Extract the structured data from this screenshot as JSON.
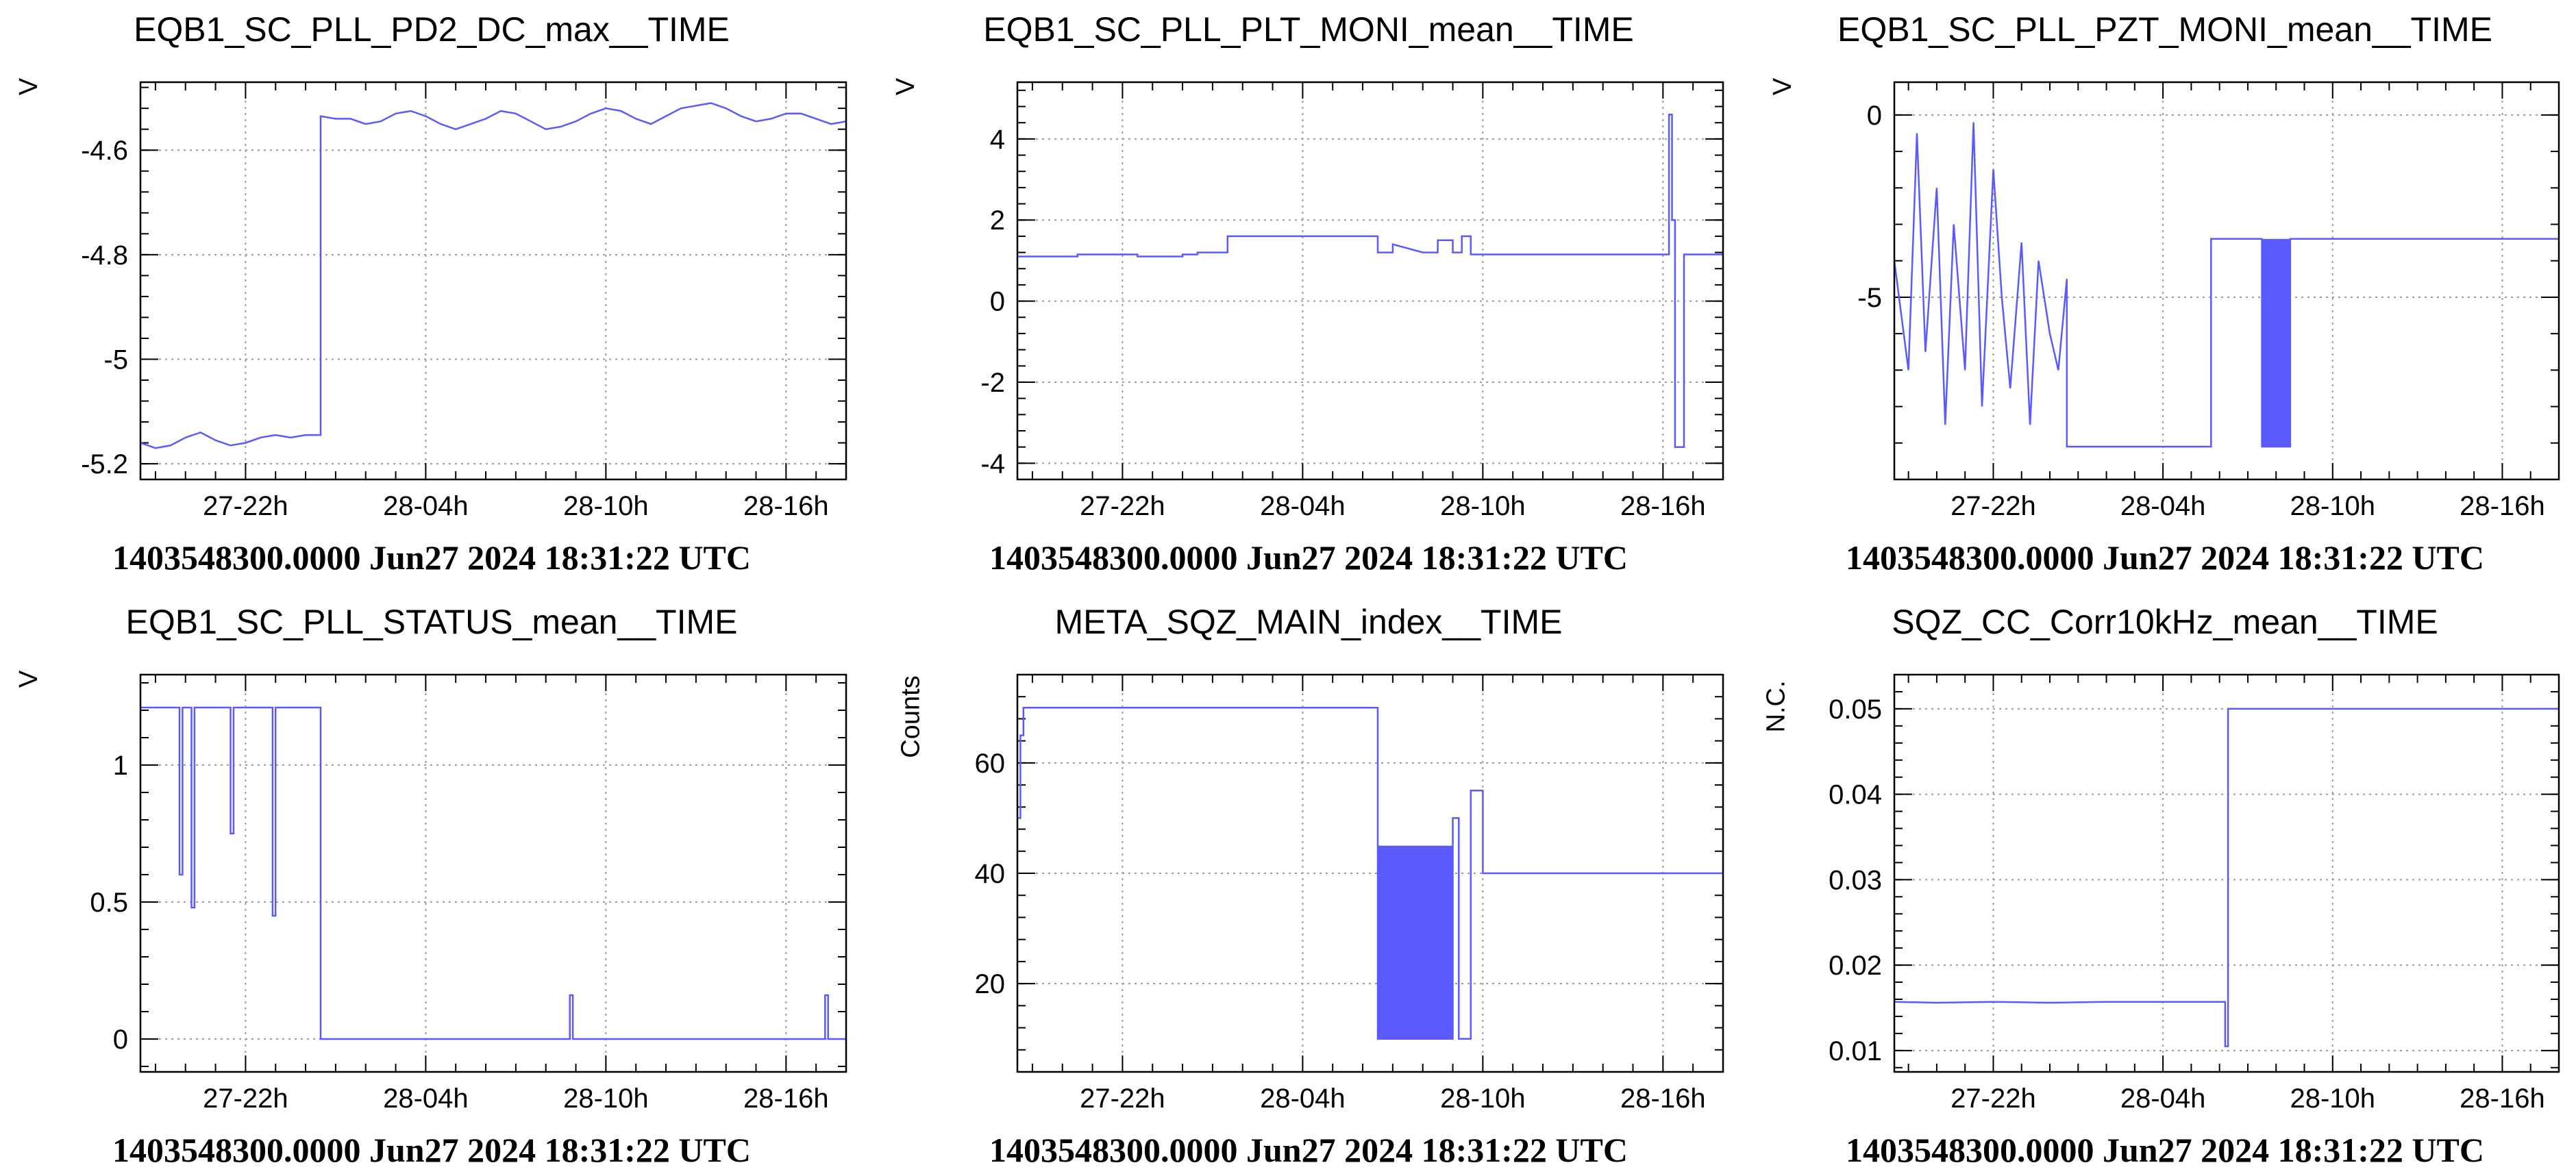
{
  "footer_text": "1403548300.0000 Jun27 2024 18:31:22 UTC",
  "xaxis_ticks": [
    "27-22h",
    "28-04h",
    "28-10h",
    "28-16h"
  ],
  "colors": {
    "series": "#5a5aff",
    "grid": "#9a9a9a",
    "frame": "#000000"
  },
  "chart_data": [
    {
      "type": "line",
      "title": "EQB1_SC_PLL_PD2_DC_max__TIME",
      "ylabel": "V",
      "ylim": [
        -5.23,
        -4.47
      ],
      "yticks": [
        {
          "v": -5.2,
          "label": "-5.2"
        },
        {
          "v": -5.0,
          "label": "-5"
        },
        {
          "v": -4.8,
          "label": "-4.8"
        },
        {
          "v": -4.6,
          "label": "-4.6"
        }
      ],
      "x_range_hours": [
        18.5,
        42.0
      ],
      "series": [
        {
          "x": [
            18.5,
            19.0,
            19.5,
            20.0,
            20.5,
            21.0,
            21.5,
            22.0,
            22.5,
            23.0,
            23.5,
            24.0,
            24.5,
            24.5,
            25.0,
            25.5,
            26.0,
            26.5,
            27.0,
            27.5,
            28.0,
            28.5,
            29.0,
            29.5,
            30.0,
            30.5,
            31.0,
            31.5,
            32.0,
            32.5,
            33.0,
            33.5,
            34.0,
            34.5,
            35.0,
            35.5,
            36.0,
            36.5,
            37.0,
            37.5,
            38.0,
            38.5,
            39.0,
            39.5,
            40.0,
            40.5,
            41.0,
            41.5,
            42.0
          ],
          "y": [
            -5.16,
            -5.17,
            -5.165,
            -5.15,
            -5.14,
            -5.155,
            -5.165,
            -5.16,
            -5.15,
            -5.145,
            -5.15,
            -5.145,
            -5.145,
            -4.535,
            -4.54,
            -4.54,
            -4.55,
            -4.545,
            -4.53,
            -4.525,
            -4.535,
            -4.55,
            -4.56,
            -4.55,
            -4.54,
            -4.525,
            -4.53,
            -4.545,
            -4.56,
            -4.555,
            -4.545,
            -4.53,
            -4.52,
            -4.525,
            -4.54,
            -4.55,
            -4.535,
            -4.52,
            -4.515,
            -4.51,
            -4.52,
            -4.535,
            -4.545,
            -4.54,
            -4.53,
            -4.53,
            -4.54,
            -4.55,
            -4.545
          ]
        }
      ]
    },
    {
      "type": "line",
      "title": "EQB1_SC_PLL_PLT_MONI_mean__TIME",
      "ylabel": "V",
      "ylim": [
        -4.4,
        5.4
      ],
      "yticks": [
        {
          "v": -4,
          "label": "-4"
        },
        {
          "v": -2,
          "label": "-2"
        },
        {
          "v": 0,
          "label": "0"
        },
        {
          "v": 2,
          "label": "2"
        },
        {
          "v": 4,
          "label": "4"
        }
      ],
      "x_range_hours": [
        18.5,
        42.0
      ],
      "series": [
        {
          "x": [
            18.5,
            20.5,
            20.5,
            22.5,
            22.5,
            24.0,
            24.0,
            24.5,
            24.5,
            25.5,
            25.5,
            30.5,
            30.5,
            31.0,
            31.0,
            32.0,
            32.5,
            32.5,
            33.0,
            33.0,
            33.3,
            33.3,
            33.6,
            33.6,
            40.0,
            40.2,
            40.2,
            40.3,
            40.3,
            40.4,
            40.4,
            40.5,
            40.5,
            40.7,
            40.7,
            40.85,
            40.85,
            42.0
          ],
          "y": [
            1.1,
            1.1,
            1.15,
            1.15,
            1.1,
            1.1,
            1.15,
            1.15,
            1.2,
            1.2,
            1.6,
            1.6,
            1.2,
            1.2,
            1.4,
            1.2,
            1.2,
            1.5,
            1.5,
            1.2,
            1.2,
            1.6,
            1.6,
            1.15,
            1.15,
            1.15,
            4.6,
            4.6,
            2.0,
            2.0,
            -3.6,
            -3.6,
            -3.6,
            -3.6,
            1.15,
            1.15,
            1.15,
            1.15
          ]
        }
      ]
    },
    {
      "type": "line",
      "title": "EQB1_SC_PLL_PZT_MONI_mean__TIME",
      "ylabel": "V",
      "ylim": [
        -10.0,
        0.9
      ],
      "yticks": [
        {
          "v": -5,
          "label": "-5"
        },
        {
          "v": 0,
          "label": "0"
        }
      ],
      "x_range_hours": [
        18.5,
        42.0
      ],
      "series": [
        {
          "x": [
            18.5,
            19.0,
            19.3,
            19.6,
            20.0,
            20.3,
            20.6,
            21.0,
            21.3,
            21.6,
            22.0,
            22.3,
            22.6,
            23.0,
            23.3,
            23.6,
            24.0,
            24.3,
            24.6,
            24.6,
            29.7,
            29.7,
            31.5,
            31.5,
            32.5,
            32.5,
            32.8,
            32.8,
            42.0
          ],
          "y": [
            -4.0,
            -7.0,
            -0.5,
            -6.5,
            -2.0,
            -8.5,
            -3.0,
            -7.0,
            -0.2,
            -8.0,
            -1.5,
            -5.0,
            -7.5,
            -3.5,
            -8.5,
            -4.0,
            -6.0,
            -7.0,
            -4.5,
            -9.1,
            -9.1,
            -3.4,
            -3.4,
            -9.1,
            -9.1,
            -3.4,
            -3.4,
            -3.4,
            -3.4
          ]
        }
      ]
    },
    {
      "type": "line",
      "title": "EQB1_SC_PLL_STATUS_mean__TIME",
      "ylabel": "V",
      "ylim": [
        -0.12,
        1.33
      ],
      "yticks": [
        {
          "v": 0,
          "label": "0"
        },
        {
          "v": 0.5,
          "label": "0.5"
        },
        {
          "v": 1,
          "label": "1"
        }
      ],
      "x_range_hours": [
        18.5,
        42.0
      ],
      "series": [
        {
          "x": [
            18.5,
            19.8,
            19.8,
            19.9,
            19.9,
            20.2,
            20.2,
            20.3,
            20.3,
            21.5,
            21.5,
            21.6,
            21.6,
            22.9,
            22.9,
            23.0,
            23.0,
            24.5,
            24.5,
            32.8,
            32.8,
            32.9,
            32.9,
            41.3,
            41.3,
            41.4,
            41.4,
            42.0
          ],
          "y": [
            1.21,
            1.21,
            0.6,
            0.6,
            1.21,
            1.21,
            0.48,
            0.48,
            1.21,
            1.21,
            0.75,
            0.75,
            1.21,
            1.21,
            0.45,
            0.45,
            1.21,
            1.21,
            0.0,
            0.0,
            0.16,
            0.16,
            0.0,
            0.0,
            0.16,
            0.16,
            0.0,
            0.0
          ]
        }
      ]
    },
    {
      "type": "line",
      "title": "META_SQZ_MAIN_index__TIME",
      "ylabel": "Counts",
      "ylim": [
        4,
        76
      ],
      "yticks": [
        {
          "v": 20,
          "label": "20"
        },
        {
          "v": 40,
          "label": "40"
        },
        {
          "v": 60,
          "label": "60"
        }
      ],
      "x_range_hours": [
        18.5,
        42.0
      ],
      "series": [
        {
          "x": [
            18.5,
            18.6,
            18.6,
            18.7,
            18.7,
            30.5,
            30.5,
            30.5,
            33.0,
            33.0,
            33.2,
            33.2,
            33.6,
            33.6,
            34.0,
            34.0,
            42.0
          ],
          "y": [
            50,
            50,
            65,
            65,
            70,
            70,
            70,
            10,
            10,
            50,
            50,
            10,
            10,
            55,
            55,
            40,
            40
          ]
        }
      ]
    },
    {
      "type": "line",
      "title": "SQZ_CC_Corr10kHz_mean__TIME",
      "ylabel": "N.C.",
      "ylim": [
        0.0075,
        0.054
      ],
      "yticks": [
        {
          "v": 0.01,
          "label": "0.01"
        },
        {
          "v": 0.02,
          "label": "0.02"
        },
        {
          "v": 0.03,
          "label": "0.03"
        },
        {
          "v": 0.04,
          "label": "0.04"
        },
        {
          "v": 0.05,
          "label": "0.05"
        }
      ],
      "x_range_hours": [
        18.5,
        42.0
      ],
      "series": [
        {
          "x": [
            18.5,
            20.0,
            22.0,
            24.0,
            26.0,
            28.0,
            30.2,
            30.2,
            30.3,
            30.3,
            42.0
          ],
          "y": [
            0.0157,
            0.0156,
            0.0157,
            0.0156,
            0.0157,
            0.0157,
            0.0157,
            0.0105,
            0.0105,
            0.05,
            0.05
          ]
        }
      ]
    }
  ]
}
